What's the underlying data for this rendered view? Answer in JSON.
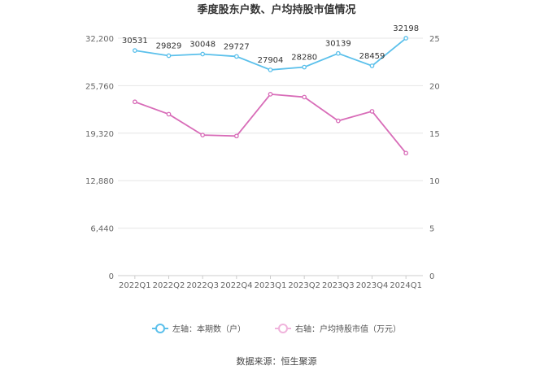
{
  "chart_data": {
    "type": "line",
    "title": "季度股东户数、户均持股市值情况",
    "categories": [
      "2022Q1",
      "2022Q2",
      "2022Q3",
      "2022Q4",
      "2023Q1",
      "2023Q2",
      "2023Q3",
      "2023Q4",
      "2024Q1"
    ],
    "left_axis": {
      "ticks": [
        "0",
        "6,440",
        "12,880",
        "19,320",
        "25,760",
        "32,200"
      ],
      "ylim": [
        0,
        32200
      ]
    },
    "right_axis": {
      "ticks": [
        "0",
        "5",
        "10",
        "15",
        "20",
        "25"
      ],
      "ylim": [
        0,
        25
      ]
    },
    "series": [
      {
        "name": "左轴：本期数（户）",
        "axis": "left",
        "color": "#5bc0eb",
        "values": [
          30531,
          29829,
          30048,
          29727,
          27904,
          28280,
          30139,
          28459,
          32198
        ],
        "labels": [
          "30531",
          "29829",
          "30048",
          "29727",
          "27904",
          "28280",
          "30139",
          "28459",
          "32198"
        ]
      },
      {
        "name": "右轴：户均持股市值（万元）",
        "axis": "right",
        "color": "#d86cb8",
        "values": [
          18.3,
          17.0,
          14.8,
          14.7,
          19.1,
          18.8,
          16.3,
          17.3,
          12.9
        ]
      }
    ],
    "grid": true,
    "legend": "bottom-center"
  },
  "source_text": "数据来源：恒生聚源"
}
